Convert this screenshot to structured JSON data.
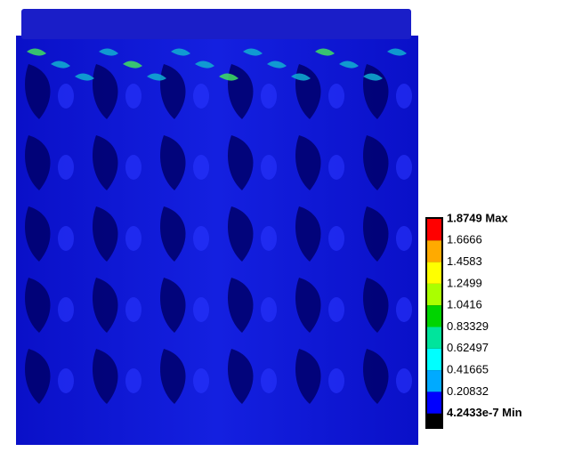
{
  "legend": {
    "labels": [
      "1.8749 Max",
      "1.6666",
      "1.4583",
      "1.2499",
      "1.0416",
      "0.83329",
      "0.62497",
      "0.41665",
      "0.20832",
      "4.2433e-7 Min"
    ]
  }
}
